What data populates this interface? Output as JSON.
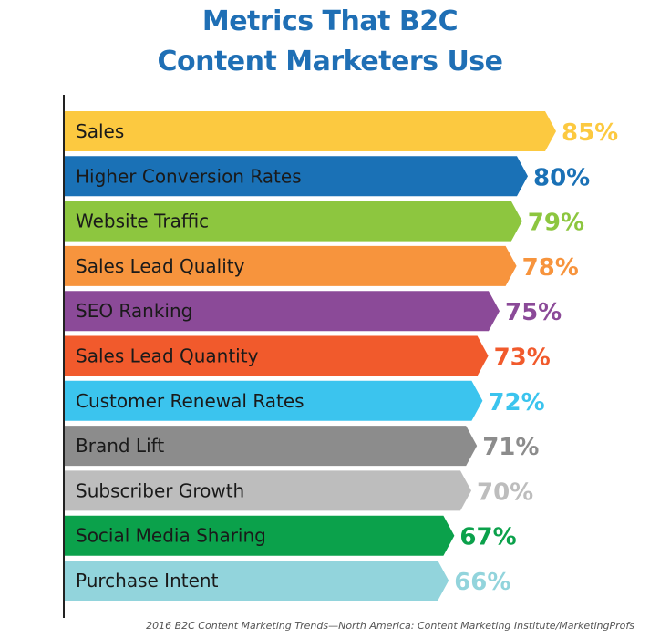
{
  "title_line1": "Metrics That B2C",
  "title_line2": "Content Marketers Use",
  "source": "2016 B2C Content Marketing Trends—North America: Content Marketing Institute/MarketingProfs",
  "chart_data": {
    "type": "bar",
    "orientation": "horizontal",
    "title": "Metrics That B2C Content Marketers Use",
    "categories": [
      "Sales",
      "Higher Conversion Rates",
      "Website Traffic",
      "Sales Lead Quality",
      "SEO Ranking",
      "Sales Lead Quantity",
      "Customer Renewal Rates",
      "Brand Lift",
      "Subscriber Growth",
      "Social Media Sharing",
      "Purchase Intent"
    ],
    "values": [
      85,
      80,
      79,
      78,
      75,
      73,
      72,
      71,
      70,
      67,
      66
    ],
    "value_labels": [
      "85%",
      "80%",
      "79%",
      "78%",
      "75%",
      "73%",
      "72%",
      "71%",
      "70%",
      "67%",
      "66%"
    ],
    "colors": [
      "#fcc940",
      "#1a71b6",
      "#8dc63f",
      "#f7943d",
      "#8b4a98",
      "#f15a2c",
      "#3bc4ee",
      "#8c8c8c",
      "#bdbdbd",
      "#0ba14b",
      "#92d4dc"
    ],
    "label_colors": [
      "#fcc940",
      "#1a71b6",
      "#8dc63f",
      "#f7943d",
      "#8b4a98",
      "#f15a2c",
      "#3bc4ee",
      "#8c8c8c",
      "#bdbdbd",
      "#0ba14b",
      "#92d4dc"
    ],
    "xlim": [
      0,
      100
    ],
    "grid": false,
    "legend": "none"
  }
}
